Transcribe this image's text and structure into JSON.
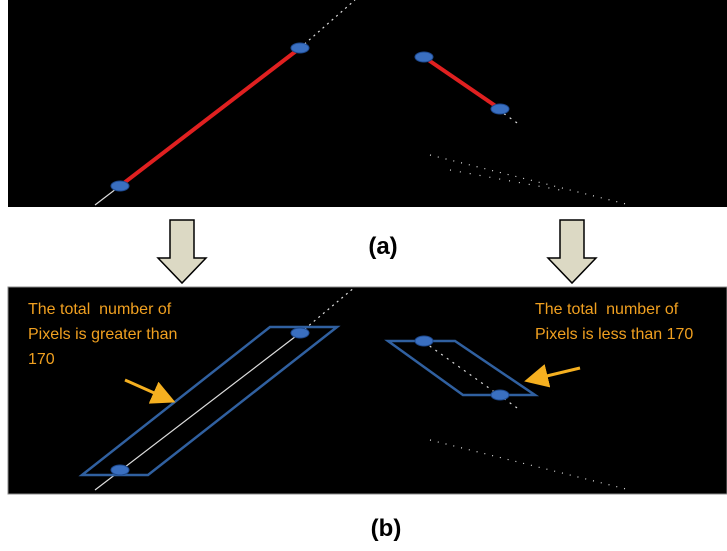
{
  "panels": {
    "a": {
      "label": "(a)"
    },
    "b": {
      "label": "(b)"
    }
  },
  "annotations": [
    {
      "lines": [
        "The total  number of",
        "Pixels is greater than",
        "170"
      ]
    },
    {
      "lines": [
        "The total  number of",
        "Pixels is less than 170"
      ]
    }
  ]
}
